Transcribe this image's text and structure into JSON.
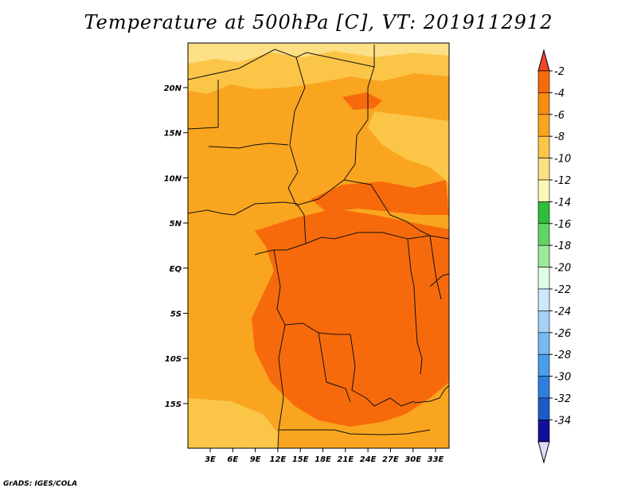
{
  "title": "Temperature at 500hPa [C], VT: 2019112912",
  "credit": "GrADS: IGES/COLA",
  "map": {
    "lat_labels": [
      "20N",
      "15N",
      "10N",
      "5N",
      "EQ",
      "5S",
      "10S",
      "15S"
    ],
    "lon_labels": [
      "3E",
      "6E",
      "9E",
      "12E",
      "15E",
      "18E",
      "21E",
      "24E",
      "27E",
      "30E",
      "33E"
    ],
    "colors": {
      "background": "#f9a51f",
      "warm": "#f76a0c",
      "cool": "#fbc548",
      "cooler": "#fde085",
      "border": "#111111"
    }
  },
  "colorbar": {
    "labels": [
      "-2",
      "-4",
      "-6",
      "-8",
      "-10",
      "-12",
      "-14",
      "-16",
      "-18",
      "-20",
      "-22",
      "-24",
      "-26",
      "-28",
      "-30",
      "-32",
      "-34"
    ],
    "top_color": "#f2452a",
    "bottom_color": "#dcdcf8",
    "colors": [
      "#f76a0c",
      "#f98c12",
      "#f9a51f",
      "#fbc548",
      "#fde085",
      "#fef6b8",
      "#2fbd3a",
      "#62d367",
      "#9cea9c",
      "#e2fbe6",
      "#cce9fb",
      "#a4d1f5",
      "#78b9f1",
      "#4b9ee9",
      "#2f7ee0",
      "#1c5cc7",
      "#12109a"
    ]
  }
}
